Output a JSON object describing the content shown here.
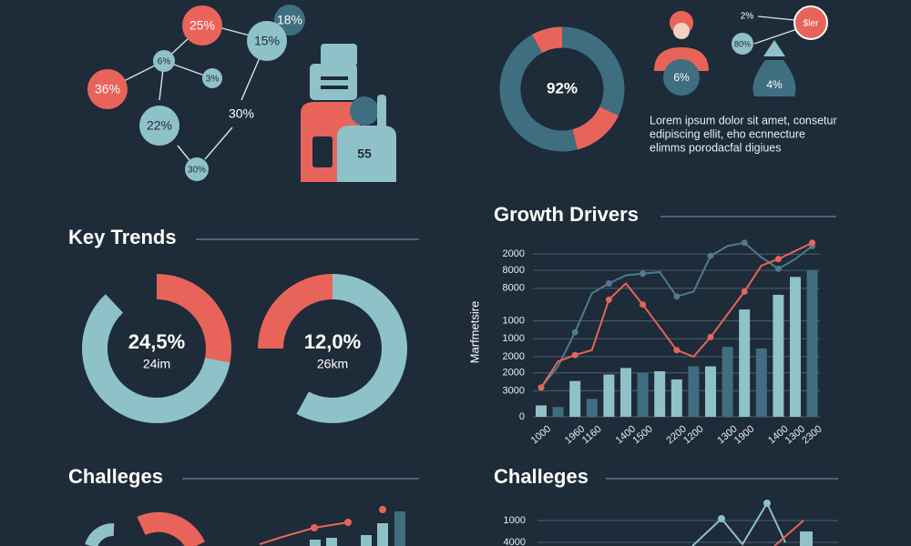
{
  "infographic": {
    "bubbles": [
      "25%",
      "18%",
      "15%",
      "6%",
      "3%",
      "36%",
      "22%",
      "30%",
      "30%"
    ],
    "jersey_number": "55",
    "icons": {
      "person_badge": "6%",
      "small_a": "2%",
      "small_b": "80%",
      "coin": "$ler",
      "bag": "4%"
    },
    "lorem": [
      "Lorem ipsum dolor sit amet, consetur",
      "edipiscing ellit, eho ecnnecture",
      "elimms porodacfal digiues"
    ],
    "sections": {
      "key_trends": "Key Trends",
      "challenges_left": "Challeges",
      "challenges_right": "Challeges"
    },
    "challenges_right_ticks": [
      "1000",
      "4000"
    ]
  },
  "chart_data": [
    {
      "type": "donut",
      "label": "92%",
      "values": [
        32,
        14,
        46,
        8
      ],
      "colors": [
        "#3f6e80",
        "#e8645a",
        "#3f6e80",
        "#e8645a"
      ]
    },
    {
      "type": "donut",
      "label": "24,5%",
      "sublabel": "24im",
      "values": [
        28,
        60
      ],
      "colors": [
        "#e8645a",
        "#8fc1c9"
      ]
    },
    {
      "type": "donut",
      "label": "12,0%",
      "sublabel": "26km",
      "values": [
        25,
        58
      ],
      "colors": [
        "#e8645a",
        "#8fc1c9"
      ]
    },
    {
      "type": "combo",
      "title": "Growth Drivers",
      "y_label": "Marfmetsire",
      "categories": [
        "1000",
        null,
        "1960",
        "1160",
        null,
        "1400",
        "1500",
        null,
        "2200",
        "1200",
        null,
        "1300",
        "1900",
        null,
        "1400",
        "1300",
        "2300"
      ],
      "ylim": [
        0,
        108
      ],
      "yticks": [
        0,
        {
          "value": 16,
          "label": "3000"
        },
        {
          "value": 27,
          "label": "2000"
        },
        {
          "value": 37,
          "label": "2000"
        },
        {
          "value": 48,
          "label": "1000"
        },
        {
          "value": 59,
          "label": "1000"
        },
        {
          "value": 79,
          "label": "8000"
        },
        {
          "value": 90,
          "label": "8000"
        },
        {
          "value": 100,
          "label": "2000"
        }
      ],
      "grid": true,
      "bars": {
        "values": [
          7,
          6,
          22,
          11,
          26,
          30,
          27,
          28,
          23,
          31,
          31,
          43,
          66,
          42,
          75,
          86,
          90
        ],
        "colors": [
          "#8fc1c9",
          "#3f6e80",
          "#8fc1c9",
          "#3f6e80",
          "#8fc1c9",
          "#8fc1c9",
          "#3f6e80",
          "#8fc1c9",
          "#8fc1c9",
          "#3f6e80",
          "#8fc1c9",
          "#3f6e80",
          "#8fc1c9",
          "#3f6e80",
          "#8fc1c9",
          "#8fc1c9",
          "#3f6e80"
        ]
      },
      "series": [
        {
          "color": "#4f7a8e",
          "values": [
            18,
            31,
            52,
            76,
            82,
            87,
            88,
            89,
            74,
            77,
            99,
            105,
            107,
            98,
            91,
            97,
            105
          ]
        },
        {
          "color": "#e8645a",
          "values": [
            18,
            34,
            38,
            41,
            72,
            82,
            69,
            55,
            41,
            37,
            49,
            63,
            77,
            93,
            97,
            102,
            107
          ]
        }
      ]
    }
  ]
}
